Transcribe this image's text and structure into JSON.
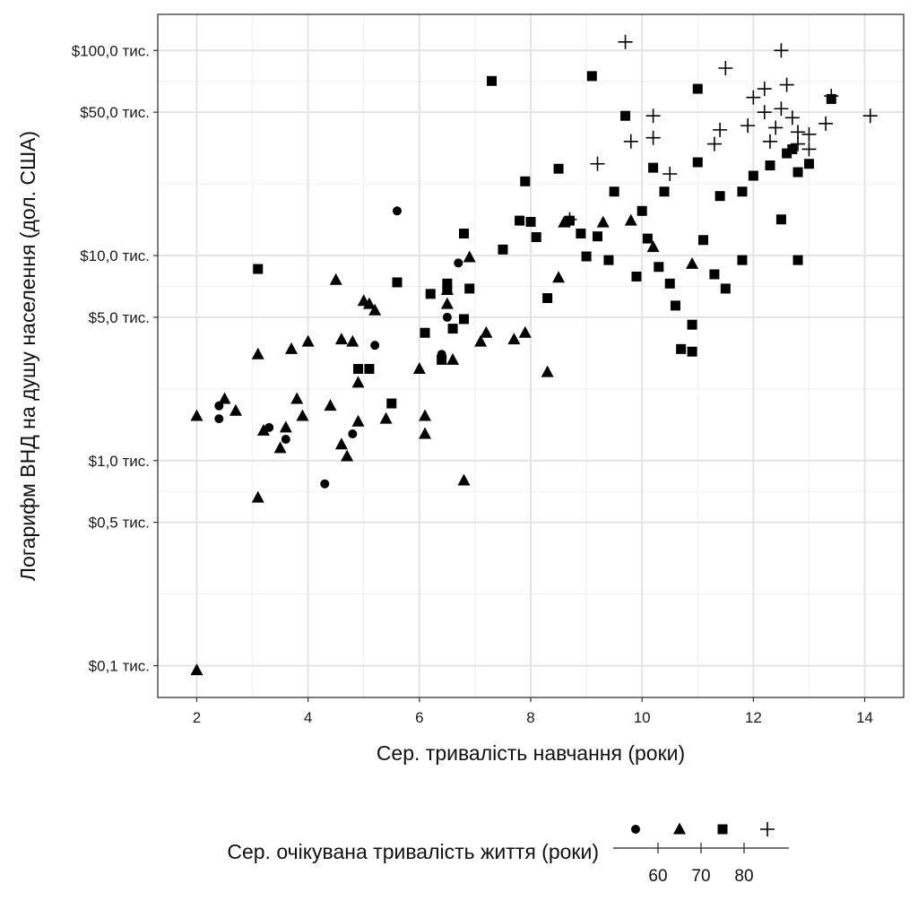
{
  "chart_data": {
    "type": "scatter",
    "title": "",
    "xlabel": "Сер. тривалість навчання (роки)",
    "ylabel": "Логарифм ВНД на душу населення (дол. США)",
    "x_scale": "linear",
    "y_scale": "log",
    "xlim": [
      1.3,
      14.7
    ],
    "ylim": [
      70,
      150000
    ],
    "x_ticks": [
      2,
      4,
      6,
      8,
      10,
      12,
      14
    ],
    "x_tick_labels": [
      "2",
      "4",
      "6",
      "8",
      "10",
      "12",
      "14"
    ],
    "y_ticks": [
      100,
      500,
      1000,
      5000,
      10000,
      50000,
      100000
    ],
    "y_tick_labels": [
      "$0,1 тис.",
      "$0,5 тис.",
      "$1,0 тис.",
      "$5,0 тис.",
      "$10,0 тис.",
      "$50,0 тис.",
      "$100,0 тис."
    ],
    "grid": true,
    "legend_position": "bottom",
    "legend": {
      "title": "Сер. очікувана тривалість життя (роки)",
      "shapes": [
        "circle",
        "triangle",
        "square",
        "plus"
      ],
      "breaks": [
        "60",
        "70",
        "80"
      ]
    },
    "series": [
      {
        "shape": "circle",
        "points": [
          [
            2.4,
            1850
          ],
          [
            2.4,
            1600
          ],
          [
            3.3,
            1450
          ],
          [
            3.6,
            1270
          ],
          [
            4.3,
            770
          ],
          [
            4.8,
            1350
          ],
          [
            5.2,
            3650
          ],
          [
            5.6,
            16500
          ],
          [
            6.4,
            3300
          ],
          [
            6.5,
            5000
          ],
          [
            6.7,
            9200
          ]
        ]
      },
      {
        "shape": "triangle",
        "points": [
          [
            2.0,
            95
          ],
          [
            2.0,
            1650
          ],
          [
            2.5,
            2000
          ],
          [
            2.7,
            1750
          ],
          [
            3.1,
            3300
          ],
          [
            3.1,
            660
          ],
          [
            3.2,
            1400
          ],
          [
            3.5,
            1150
          ],
          [
            3.6,
            1450
          ],
          [
            3.7,
            3500
          ],
          [
            3.8,
            2000
          ],
          [
            3.9,
            1650
          ],
          [
            4.0,
            3800
          ],
          [
            4.4,
            1850
          ],
          [
            4.5,
            7600
          ],
          [
            4.6,
            3900
          ],
          [
            4.6,
            1200
          ],
          [
            4.7,
            1050
          ],
          [
            4.8,
            3800
          ],
          [
            4.9,
            2400
          ],
          [
            4.9,
            1550
          ],
          [
            5.0,
            6000
          ],
          [
            5.1,
            5800
          ],
          [
            5.2,
            5400
          ],
          [
            5.4,
            1600
          ],
          [
            6.0,
            2800
          ],
          [
            6.1,
            1650
          ],
          [
            6.1,
            1350
          ],
          [
            6.5,
            6800
          ],
          [
            6.5,
            5800
          ],
          [
            6.6,
            3100
          ],
          [
            6.8,
            800
          ],
          [
            6.9,
            9800
          ],
          [
            7.1,
            3800
          ],
          [
            7.2,
            4200
          ],
          [
            7.7,
            3900
          ],
          [
            7.9,
            4200
          ],
          [
            8.3,
            2700
          ],
          [
            8.5,
            7800
          ],
          [
            8.6,
            14500
          ],
          [
            9.3,
            14500
          ],
          [
            9.8,
            14800
          ],
          [
            10.2,
            11000
          ],
          [
            10.9,
            9100
          ]
        ]
      },
      {
        "shape": "square",
        "points": [
          [
            3.1,
            8600
          ],
          [
            4.9,
            2800
          ],
          [
            5.1,
            2800
          ],
          [
            5.5,
            1900
          ],
          [
            5.6,
            7400
          ],
          [
            6.1,
            4200
          ],
          [
            6.2,
            6500
          ],
          [
            6.4,
            3100
          ],
          [
            6.5,
            7300
          ],
          [
            6.5,
            6800
          ],
          [
            6.6,
            4400
          ],
          [
            6.8,
            4900
          ],
          [
            6.8,
            12800
          ],
          [
            6.9,
            6900
          ],
          [
            7.3,
            71000
          ],
          [
            7.5,
            10700
          ],
          [
            7.8,
            14800
          ],
          [
            7.9,
            23000
          ],
          [
            8.0,
            14600
          ],
          [
            8.1,
            12300
          ],
          [
            8.3,
            6200
          ],
          [
            8.5,
            26500
          ],
          [
            8.7,
            14800
          ],
          [
            8.9,
            12800
          ],
          [
            9.0,
            9900
          ],
          [
            9.1,
            75000
          ],
          [
            9.2,
            12400
          ],
          [
            9.4,
            9500
          ],
          [
            9.5,
            20500
          ],
          [
            9.7,
            48000
          ],
          [
            9.9,
            7900
          ],
          [
            10.0,
            16500
          ],
          [
            10.1,
            12100
          ],
          [
            10.2,
            26800
          ],
          [
            10.3,
            8800
          ],
          [
            10.4,
            20500
          ],
          [
            10.5,
            7300
          ],
          [
            10.6,
            5700
          ],
          [
            10.7,
            3500
          ],
          [
            10.9,
            3400
          ],
          [
            10.9,
            4600
          ],
          [
            11.0,
            28500
          ],
          [
            11.0,
            65000
          ],
          [
            11.1,
            11900
          ],
          [
            11.3,
            8100
          ],
          [
            11.4,
            19500
          ],
          [
            11.5,
            6900
          ],
          [
            11.8,
            20500
          ],
          [
            11.8,
            9500
          ],
          [
            12.0,
            24500
          ],
          [
            12.3,
            27500
          ],
          [
            12.5,
            15000
          ],
          [
            12.6,
            31500
          ],
          [
            12.7,
            33000
          ],
          [
            12.8,
            25500
          ],
          [
            12.8,
            9500
          ],
          [
            13.0,
            28000
          ],
          [
            13.4,
            58000
          ]
        ]
      },
      {
        "shape": "plus",
        "points": [
          [
            8.7,
            15000
          ],
          [
            9.2,
            28000
          ],
          [
            9.7,
            110000
          ],
          [
            9.8,
            36000
          ],
          [
            10.2,
            48000
          ],
          [
            10.2,
            37500
          ],
          [
            10.5,
            25000
          ],
          [
            11.3,
            35000
          ],
          [
            11.4,
            41000
          ],
          [
            11.5,
            82000
          ],
          [
            11.9,
            43000
          ],
          [
            12.0,
            59000
          ],
          [
            12.2,
            65000
          ],
          [
            12.2,
            50000
          ],
          [
            12.3,
            36000
          ],
          [
            12.4,
            42000
          ],
          [
            12.5,
            100000
          ],
          [
            12.5,
            52000
          ],
          [
            12.6,
            68000
          ],
          [
            12.7,
            47000
          ],
          [
            12.8,
            40000
          ],
          [
            12.8,
            35000
          ],
          [
            13.0,
            39000
          ],
          [
            13.0,
            33000
          ],
          [
            13.3,
            44000
          ],
          [
            13.4,
            60000
          ],
          [
            14.1,
            48000
          ]
        ]
      }
    ]
  }
}
